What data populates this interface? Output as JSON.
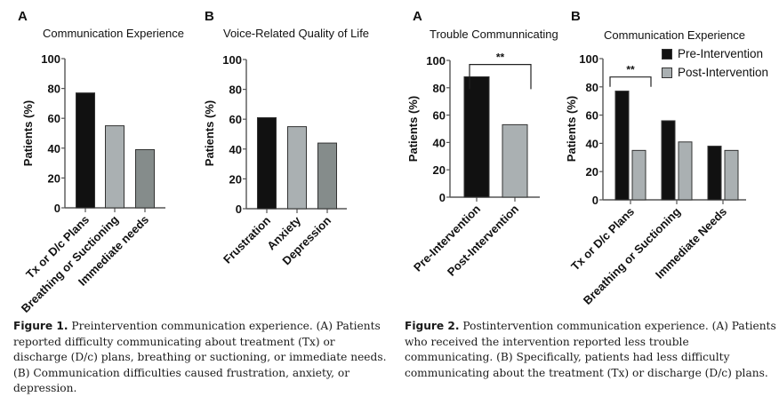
{
  "figures": [
    {
      "caption_label": "Figure 1.",
      "caption_text": " Preintervention communication experience. (A) Patients reported difficulty communicating about treatment (Tx) or discharge (D/c) plans, breathing or suctioning, or immediate needs. (B) Communication difficulties caused frustration, anxiety, or depression."
    },
    {
      "caption_label": "Figure 2.",
      "caption_text": " Postintervention communication experience. (A) Patients who received the intervention reported less trouble communicating. (B) Specifically, patients had less difficulty communicating about the treatment (Tx) or discharge (D/c) plans."
    }
  ],
  "legend": {
    "items": [
      {
        "label": "Pre-Intervention",
        "color": "#111111"
      },
      {
        "label": "Post-Intervention",
        "color": "#aab0b2"
      }
    ]
  },
  "chart_data": [
    {
      "id": "fig1a",
      "panel": "A",
      "type": "bar",
      "title": "Communication Experience",
      "ylabel": "Patients (%)",
      "xlabel": "",
      "ylim": [
        0,
        100
      ],
      "yticks": [
        0,
        20,
        40,
        60,
        80,
        100
      ],
      "categories": [
        "Tx or D/c Plans",
        "Breathing or Suctioning",
        "Immediate needs"
      ],
      "values": [
        77,
        55,
        39
      ],
      "colors": [
        "#111111",
        "#aab0b2",
        "#858c8b"
      ],
      "grid": false
    },
    {
      "id": "fig1b",
      "panel": "B",
      "type": "bar",
      "title": "Voice-Related Quality of Life",
      "ylabel": "Patients (%)",
      "xlabel": "",
      "ylim": [
        0,
        100
      ],
      "yticks": [
        0,
        20,
        40,
        60,
        80,
        100
      ],
      "categories": [
        "Frustration",
        "Anxiety",
        "Depression"
      ],
      "values": [
        61,
        55,
        44
      ],
      "colors": [
        "#111111",
        "#aab0b2",
        "#858c8b"
      ],
      "grid": false
    },
    {
      "id": "fig2a",
      "panel": "A",
      "type": "bar",
      "title": "Trouble Communnicating",
      "ylabel": "Patients (%)",
      "xlabel": "",
      "ylim": [
        0,
        100
      ],
      "yticks": [
        0,
        20,
        40,
        60,
        80,
        100
      ],
      "categories": [
        "Pre-Intervention",
        "Post-Intervention"
      ],
      "values": [
        88,
        53
      ],
      "colors": [
        "#111111",
        "#aab0b2"
      ],
      "significance": {
        "label": "**",
        "from": 0,
        "to": 1
      },
      "grid": false
    },
    {
      "id": "fig2b",
      "panel": "B",
      "type": "bar",
      "title": "Communication Experience",
      "ylabel": "Patients (%)",
      "xlabel": "",
      "ylim": [
        0,
        100
      ],
      "yticks": [
        0,
        20,
        40,
        60,
        80,
        100
      ],
      "categories": [
        "Tx or D/c Plans",
        "Breathing or Suctioning",
        "Immediate Needs"
      ],
      "series": [
        {
          "name": "Pre-Intervention",
          "values": [
            77,
            56,
            38
          ],
          "color": "#111111"
        },
        {
          "name": "Post-Intervention",
          "values": [
            35,
            41,
            35
          ],
          "color": "#aab0b2"
        }
      ],
      "significance": {
        "label": "**",
        "category": 0
      },
      "legend_position": "top-right",
      "grid": false
    }
  ]
}
